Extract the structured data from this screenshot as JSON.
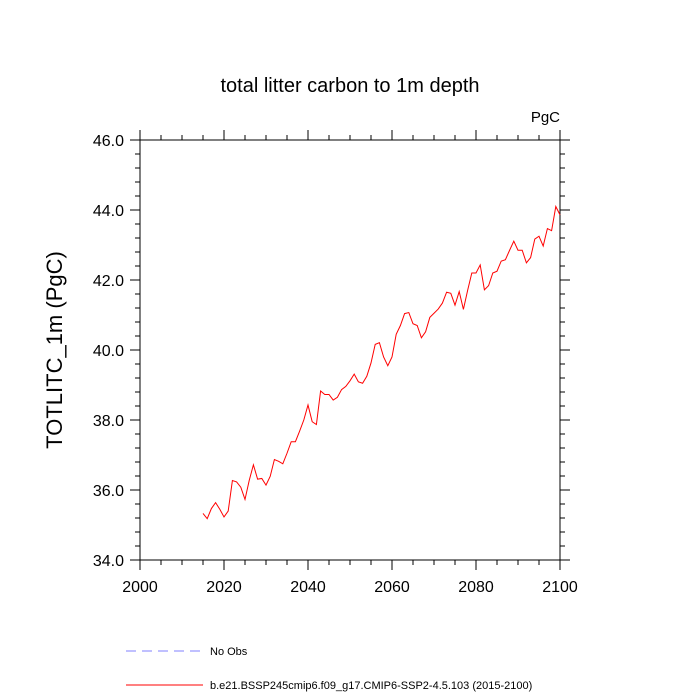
{
  "chart_data": {
    "type": "line",
    "title": "total litter carbon to 1m depth",
    "units_label": "PgC",
    "ylabel": "TOTLITC_1m  (PgC)",
    "xlabel": "",
    "xlim": [
      2000,
      2100
    ],
    "ylim": [
      34.0,
      46.0
    ],
    "x_ticks": [
      2000,
      2020,
      2040,
      2060,
      2080,
      2100
    ],
    "x_tick_labels": [
      "2000",
      "2020",
      "2040",
      "2060",
      "2080",
      "2100"
    ],
    "y_ticks": [
      34.0,
      36.0,
      38.0,
      40.0,
      42.0,
      44.0,
      46.0
    ],
    "y_tick_labels": [
      "34.0",
      "36.0",
      "38.0",
      "40.0",
      "42.0",
      "44.0",
      "46.0"
    ],
    "grid": false,
    "legend_position": "bottom",
    "series": [
      {
        "name": "No Obs",
        "color": "#8080ff",
        "dash": "dashed",
        "x": [],
        "values": []
      },
      {
        "name": "b.e21.BSSP245cmip6.f09_g17.CMIP6-SSP2-4.5.103 (2015-2100)",
        "color": "#ff0000",
        "dash": "solid",
        "x": [
          2015,
          2016,
          2017,
          2018,
          2019,
          2020,
          2021,
          2022,
          2023,
          2024,
          2025,
          2026,
          2027,
          2028,
          2029,
          2030,
          2031,
          2032,
          2033,
          2034,
          2035,
          2036,
          2037,
          2038,
          2039,
          2040,
          2041,
          2042,
          2043,
          2044,
          2045,
          2046,
          2047,
          2048,
          2049,
          2050,
          2051,
          2052,
          2053,
          2054,
          2055,
          2056,
          2057,
          2058,
          2059,
          2060,
          2061,
          2062,
          2063,
          2064,
          2065,
          2066,
          2067,
          2068,
          2069,
          2070,
          2071,
          2072,
          2073,
          2074,
          2075,
          2076,
          2077,
          2078,
          2079,
          2080,
          2081,
          2082,
          2083,
          2084,
          2085,
          2086,
          2087,
          2088,
          2089,
          2090,
          2091,
          2092,
          2093,
          2094,
          2095,
          2096,
          2097,
          2098,
          2099,
          2100
        ],
        "values": [
          35.33,
          35.18,
          35.47,
          35.64,
          35.45,
          35.23,
          35.4,
          36.27,
          36.23,
          36.08,
          35.73,
          36.27,
          36.72,
          36.31,
          36.33,
          36.14,
          36.39,
          36.87,
          36.82,
          36.75,
          37.05,
          37.38,
          37.38,
          37.68,
          38.0,
          38.43,
          37.95,
          37.87,
          38.83,
          38.73,
          38.73,
          38.57,
          38.65,
          38.87,
          38.96,
          39.12,
          39.31,
          39.09,
          39.05,
          39.25,
          39.63,
          40.16,
          40.21,
          39.8,
          39.55,
          39.8,
          40.45,
          40.7,
          41.04,
          41.07,
          40.75,
          40.7,
          40.35,
          40.52,
          40.93,
          41.05,
          41.17,
          41.34,
          41.65,
          41.62,
          41.28,
          41.67,
          41.16,
          41.7,
          42.2,
          42.2,
          42.43,
          41.72,
          41.84,
          42.2,
          42.25,
          42.54,
          42.58,
          42.85,
          43.11,
          42.85,
          42.85,
          42.49,
          42.64,
          43.17,
          43.25,
          42.97,
          43.47,
          43.41,
          44.1,
          43.86
        ]
      }
    ]
  }
}
